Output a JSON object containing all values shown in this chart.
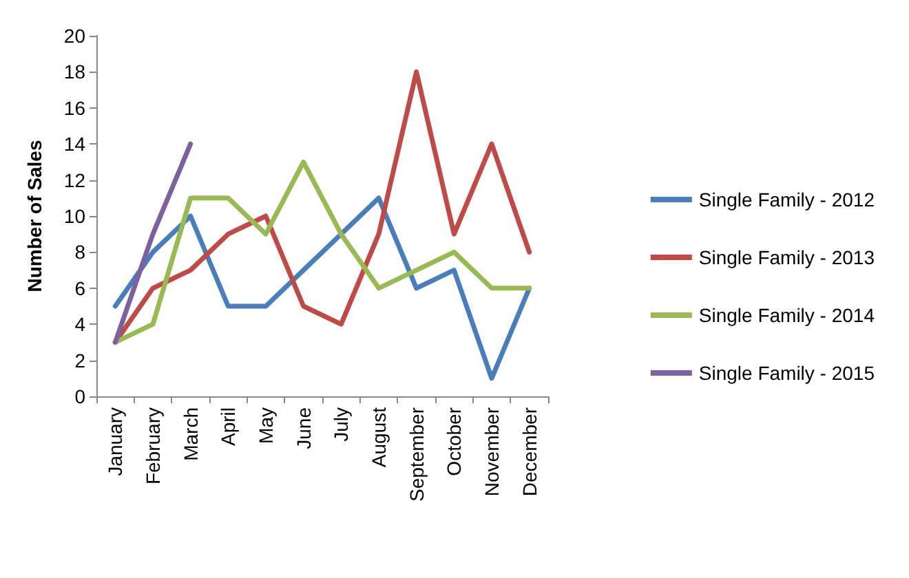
{
  "chart_data": {
    "type": "line",
    "ylabel": "Number of Sales",
    "categories": [
      "January",
      "February",
      "March",
      "April",
      "May",
      "June",
      "July",
      "August",
      "September",
      "October",
      "November",
      "December"
    ],
    "series": [
      {
        "name": "Single Family - 2012",
        "color": "#4a7ebb",
        "values": [
          5,
          8,
          10,
          5,
          5,
          7,
          9,
          11,
          6,
          7,
          1,
          6
        ]
      },
      {
        "name": "Single Family - 2013",
        "color": "#be4b48",
        "values": [
          3,
          6,
          7,
          9,
          10,
          5,
          4,
          9,
          18,
          9,
          14,
          8
        ]
      },
      {
        "name": "Single Family - 2014",
        "color": "#98b954",
        "values": [
          3,
          4,
          11,
          11,
          9,
          13,
          9,
          6,
          7,
          8,
          6,
          6
        ]
      },
      {
        "name": "Single Family - 2015",
        "color": "#7d60a0",
        "values": [
          3,
          9,
          14,
          null,
          null,
          null,
          null,
          null,
          null,
          null,
          null,
          null
        ]
      }
    ],
    "ylim": [
      0,
      20
    ],
    "yticks": [
      0,
      2,
      4,
      6,
      8,
      10,
      12,
      14,
      16,
      18,
      20
    ],
    "grid": false,
    "legend": "right",
    "marker": "none",
    "line_style": "solid"
  }
}
